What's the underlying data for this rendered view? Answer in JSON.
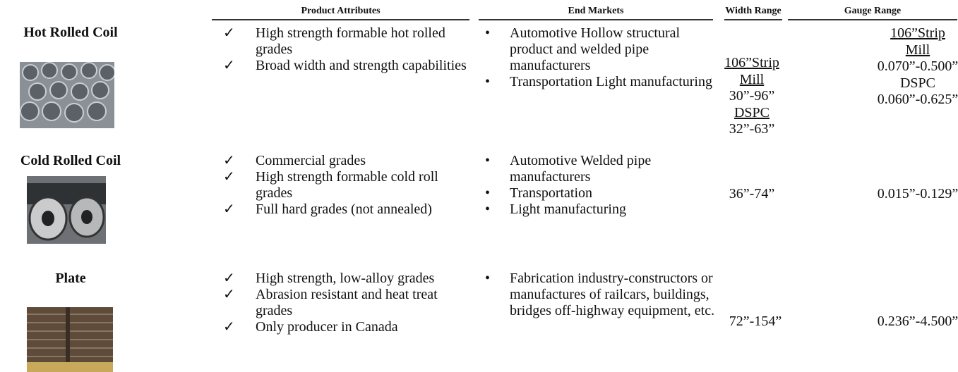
{
  "header": {
    "columns": [
      "Product Attributes",
      "End Markets",
      "Width Range",
      "Gauge Range"
    ]
  },
  "products": [
    {
      "name": "Hot Rolled Coil",
      "attributes": [
        "High strength formable hot rolled grades",
        "Broad width and strength capabilities"
      ],
      "end_markets": [
        "Automotive Hollow structural product and welded pipe manufacturers",
        "Transportation Light manufacturing"
      ],
      "width_range": [
        "106”Strip Mill",
        "30”-96”",
        "DSPC",
        "32”-63”"
      ],
      "gauge_range": [
        "106”Strip Mill",
        "0.070”-0.500”",
        "DSPC",
        "0.060”-0.625”"
      ]
    },
    {
      "name": "Cold Rolled Coil",
      "attributes": [
        "Commercial grades",
        "High strength formable cold roll grades",
        "Full hard grades (not annealed)"
      ],
      "end_markets": [
        "Automotive Welded pipe manufacturers",
        "Transportation",
        "Light manufacturing"
      ],
      "width_range": [
        "36”-74”"
      ],
      "gauge_range": [
        "0.015”-0.129”"
      ]
    },
    {
      "name": "Plate",
      "attributes": [
        "High strength, low-alloy grades",
        "Abrasion resistant and heat treat grades",
        "Only producer in Canada"
      ],
      "end_markets": [
        "Fabrication industry-constructors or manufactures of railcars, buildings, bridges off-highway equipment, etc."
      ],
      "width_range": [
        "72”-154”"
      ],
      "gauge_range": [
        "0.236”-4.500”"
      ]
    }
  ]
}
